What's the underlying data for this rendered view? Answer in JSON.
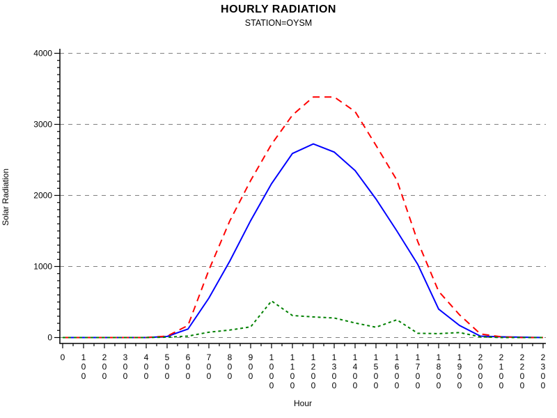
{
  "header": {
    "title": "HOURLY RADIATION",
    "subtitle": "STATION=OYSM"
  },
  "chart_data": {
    "type": "line",
    "title": "HOURLY RADIATION",
    "subtitle": "STATION=OYSM",
    "xlabel": "Hour",
    "ylabel": "Solar Radiation",
    "ylim": [
      0,
      4000
    ],
    "y_ticks": [
      0,
      1000,
      2000,
      3000,
      4000
    ],
    "y_minor_tick_step": 100,
    "x_minor_ticks": "between-each-hour",
    "grid": "horizontal-dashed",
    "legend": "none",
    "categories": [
      "0",
      "100",
      "200",
      "300",
      "400",
      "500",
      "600",
      "700",
      "800",
      "900",
      "1000",
      "1100",
      "1200",
      "1300",
      "1400",
      "1500",
      "1600",
      "1700",
      "1800",
      "1900",
      "2000",
      "2100",
      "2200",
      "2300"
    ],
    "series": [
      {
        "name": "blue-solid-series",
        "color": "#0000ff",
        "line_style": "solid",
        "values": [
          0,
          0,
          0,
          0,
          0,
          15,
          120,
          555,
          1075,
          1645,
          2165,
          2590,
          2725,
          2610,
          2350,
          1950,
          1500,
          1030,
          400,
          170,
          20,
          10,
          5,
          0
        ]
      },
      {
        "name": "red-dashed-series",
        "color": "#ff0000",
        "line_style": "dashed",
        "values": [
          0,
          0,
          0,
          0,
          0,
          20,
          170,
          950,
          1640,
          2210,
          2720,
          3130,
          3385,
          3385,
          3180,
          2705,
          2215,
          1350,
          650,
          320,
          50,
          10,
          0,
          0
        ]
      },
      {
        "name": "green-short-dashed-series",
        "color": "#008000",
        "line_style": "short-dashed",
        "values": [
          0,
          0,
          0,
          0,
          0,
          5,
          20,
          75,
          105,
          150,
          515,
          310,
          290,
          275,
          205,
          145,
          250,
          60,
          55,
          70,
          10,
          0,
          0,
          0
        ]
      }
    ],
    "colors": {
      "grid": "#808080",
      "axis": "#000000"
    }
  }
}
